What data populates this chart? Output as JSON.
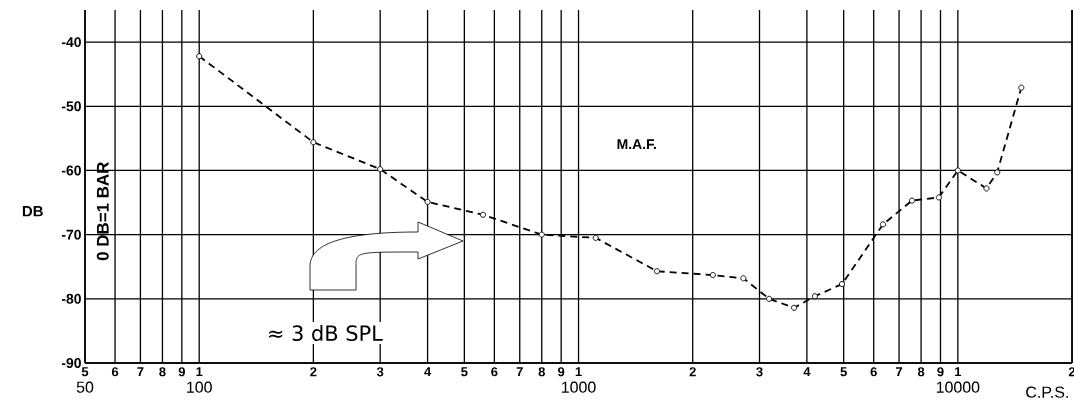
{
  "chart_data": {
    "type": "line",
    "xlabel": "C.P.S.",
    "ylabel": "DB",
    "x": [
      100,
      200,
      300,
      400,
      560,
      800,
      1110,
      1610,
      2260,
      2720,
      3180,
      3700,
      4200,
      4950,
      6350,
      7570,
      8910,
      10000,
      11900,
      12700,
      14700
    ],
    "series": [
      {
        "color": "#000000",
        "values": [
          -42.2,
          -55.6,
          -59.8,
          -64.9,
          -66.9,
          -70.0,
          -70.5,
          -75.7,
          -76.3,
          -76.8,
          -80.0,
          -81.4,
          -79.6,
          -77.7,
          -68.4,
          -64.7,
          -64.2,
          -60.0,
          -62.8,
          -60.3,
          -47.1
        ]
      }
    ],
    "log": "x",
    "xlim": [
      50,
      20000
    ],
    "ylim": [
      -90,
      -35
    ],
    "xticks": [
      50,
      {
        "value": 60,
        "label": null
      },
      {
        "value": 70,
        "label": null
      },
      {
        "value": 80,
        "label": null
      },
      {
        "value": 90,
        "label": null
      },
      100,
      {
        "value": 200,
        "label": null
      },
      {
        "value": 300,
        "label": null
      },
      {
        "value": 400,
        "label": null
      },
      {
        "value": 500,
        "label": null
      },
      {
        "value": 600,
        "label": null
      },
      {
        "value": 700,
        "label": null
      },
      {
        "value": 800,
        "label": null
      },
      {
        "value": 900,
        "label": null
      },
      1000,
      {
        "value": 2000,
        "label": null
      },
      {
        "value": 3000,
        "label": null
      },
      {
        "value": 4000,
        "label": null
      },
      {
        "value": 5000,
        "label": null
      },
      {
        "value": 6000,
        "label": null
      },
      {
        "value": 7000,
        "label": null
      },
      {
        "value": 8000,
        "label": null
      },
      {
        "value": 9000,
        "label": null
      },
      10000,
      {
        "value": 20000,
        "label": null
      }
    ],
    "yticks": [
      -90,
      -80,
      -70,
      -60,
      -50,
      -40
    ],
    "grid": true,
    "marker": "circle",
    "line_style": "dashed",
    "annotations": [
      "0 DB=1 BAR",
      "M.A.F.",
      "≈ 3 dB SPL",
      "5",
      "6",
      "7",
      "8",
      "9",
      "1",
      "2",
      "3",
      "4",
      "5",
      "6",
      "7",
      "8",
      "9",
      "1",
      "2",
      "3",
      "4",
      "5",
      "6",
      "7",
      "8",
      "9",
      "1",
      "2"
    ]
  }
}
